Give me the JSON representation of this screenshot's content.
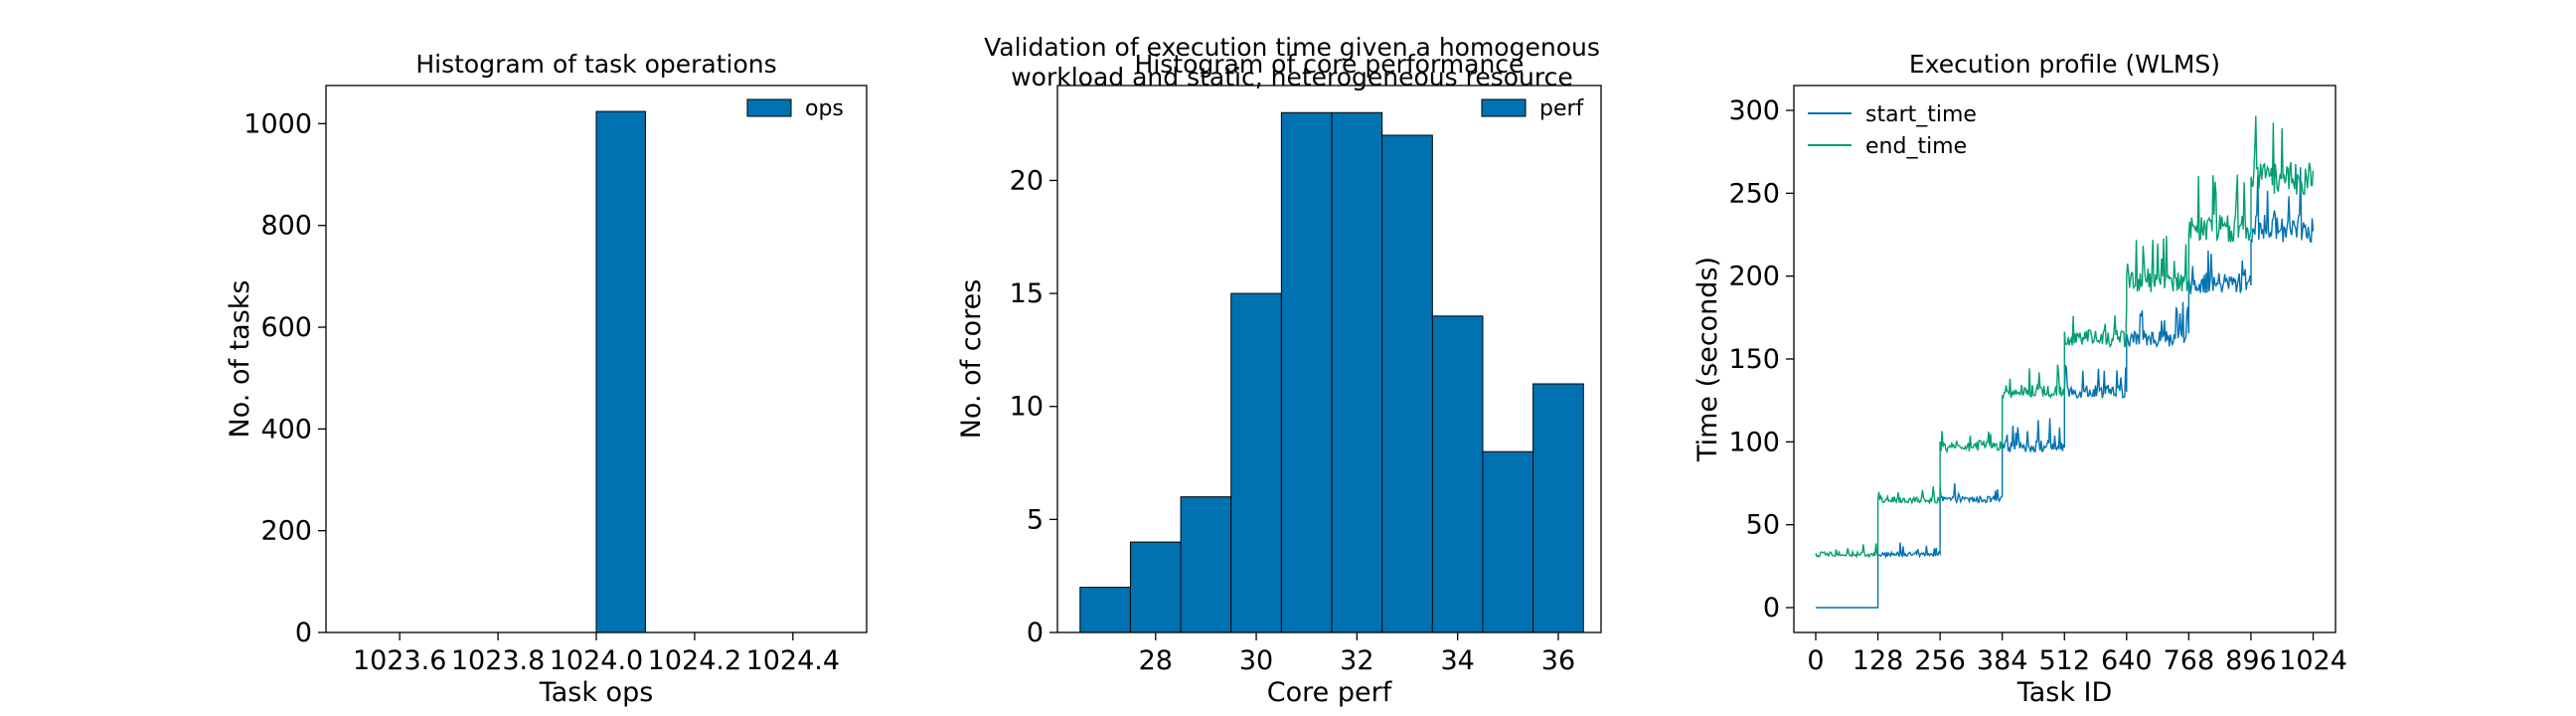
{
  "figure": {
    "title": "Validation of execution time given a homogenous\nworkload and static, heterogeneous resource"
  },
  "chart_data": [
    {
      "type": "bar",
      "title": "Histogram of task operations",
      "xlabel": "Task ops",
      "ylabel": "No. of tasks",
      "xlim": [
        1023.45,
        1024.55
      ],
      "ylim": [
        0,
        1075
      ],
      "xticks": [
        1023.6,
        1023.8,
        1024.0,
        1024.2,
        1024.4
      ],
      "xtick_labels": [
        "1023.6",
        "1023.8",
        "1024.0",
        "1024.2",
        "1024.4"
      ],
      "yticks": [
        0,
        200,
        400,
        600,
        800,
        1000
      ],
      "bins": [
        {
          "x0": 1023.5,
          "x1": 1023.6,
          "count": 0
        },
        {
          "x0": 1023.6,
          "x1": 1023.7,
          "count": 0
        },
        {
          "x0": 1023.7,
          "x1": 1023.8,
          "count": 0
        },
        {
          "x0": 1023.8,
          "x1": 1023.9,
          "count": 0
        },
        {
          "x0": 1023.9,
          "x1": 1024.0,
          "count": 0
        },
        {
          "x0": 1024.0,
          "x1": 1024.1,
          "count": 1024
        },
        {
          "x0": 1024.1,
          "x1": 1024.2,
          "count": 0
        },
        {
          "x0": 1024.2,
          "x1": 1024.3,
          "count": 0
        },
        {
          "x0": 1024.3,
          "x1": 1024.4,
          "count": 0
        },
        {
          "x0": 1024.4,
          "x1": 1024.5,
          "count": 0
        }
      ],
      "series": [
        {
          "name": "ops",
          "color": "#0072b2"
        }
      ],
      "legend": "top-right",
      "grid": false
    },
    {
      "type": "bar",
      "title": "Histogram of core performance",
      "xlabel": "Core perf",
      "ylabel": "No. of cores",
      "xlim": [
        26.05,
        36.85
      ],
      "ylim": [
        0,
        24.2
      ],
      "xticks": [
        28,
        30,
        32,
        34,
        36
      ],
      "xtick_labels": [
        "28",
        "30",
        "32",
        "34",
        "36"
      ],
      "yticks": [
        0,
        5,
        10,
        15,
        20
      ],
      "bins": [
        {
          "x0": 26.5,
          "x1": 27.5,
          "count": 2
        },
        {
          "x0": 27.5,
          "x1": 28.5,
          "count": 4
        },
        {
          "x0": 28.5,
          "x1": 29.5,
          "count": 6
        },
        {
          "x0": 29.5,
          "x1": 30.5,
          "count": 15
        },
        {
          "x0": 30.5,
          "x1": 31.5,
          "count": 23
        },
        {
          "x0": 31.5,
          "x1": 32.5,
          "count": 23
        },
        {
          "x0": 32.5,
          "x1": 33.5,
          "count": 22
        },
        {
          "x0": 33.5,
          "x1": 34.5,
          "count": 14
        },
        {
          "x0": 34.5,
          "x1": 35.5,
          "count": 8
        },
        {
          "x0": 35.5,
          "x1": 36.5,
          "count": 11
        }
      ],
      "series": [
        {
          "name": "perf",
          "color": "#0072b2"
        }
      ],
      "legend": "top-right",
      "grid": false
    },
    {
      "type": "line",
      "title": "Execution profile (WLMS)",
      "xlabel": "Task ID",
      "ylabel": "Time (seconds)",
      "xlim": [
        -45,
        1070
      ],
      "ylim": [
        -15,
        315
      ],
      "xticks": [
        0,
        128,
        256,
        384,
        512,
        640,
        768,
        896,
        1024
      ],
      "xtick_labels": [
        "0",
        "128",
        "256",
        "384",
        "512",
        "640",
        "768",
        "896",
        "1024"
      ],
      "yticks": [
        0,
        50,
        100,
        150,
        200,
        250,
        300
      ],
      "series": [
        {
          "name": "start_time",
          "color": "#0072b2",
          "segments": [
            {
              "x0": 0,
              "x1": 128,
              "base": 0,
              "noise": 0
            },
            {
              "x0": 128,
              "x1": 256,
              "base": 32,
              "noise": 3
            },
            {
              "x0": 256,
              "x1": 384,
              "base": 65,
              "noise": 4
            },
            {
              "x0": 384,
              "x1": 512,
              "base": 97,
              "noise": 7
            },
            {
              "x0": 512,
              "x1": 640,
              "base": 130,
              "noise": 8
            },
            {
              "x0": 640,
              "x1": 768,
              "base": 162,
              "noise": 10
            },
            {
              "x0": 768,
              "x1": 896,
              "base": 195,
              "noise": 13
            },
            {
              "x0": 896,
              "x1": 1024,
              "base": 228,
              "noise": 17
            }
          ]
        },
        {
          "name": "end_time",
          "color": "#009e73",
          "segments": [
            {
              "x0": 0,
              "x1": 128,
              "base": 32,
              "noise": 3
            },
            {
              "x0": 128,
              "x1": 256,
              "base": 65,
              "noise": 4
            },
            {
              "x0": 256,
              "x1": 384,
              "base": 97,
              "noise": 7
            },
            {
              "x0": 384,
              "x1": 512,
              "base": 130,
              "noise": 8
            },
            {
              "x0": 512,
              "x1": 640,
              "base": 162,
              "noise": 10
            },
            {
              "x0": 640,
              "x1": 768,
              "base": 195,
              "noise": 13
            },
            {
              "x0": 768,
              "x1": 896,
              "base": 228,
              "noise": 17
            },
            {
              "x0": 896,
              "x1": 1024,
              "base": 258,
              "noise": 20
            }
          ]
        }
      ],
      "legend": "top-left",
      "grid": false
    }
  ]
}
